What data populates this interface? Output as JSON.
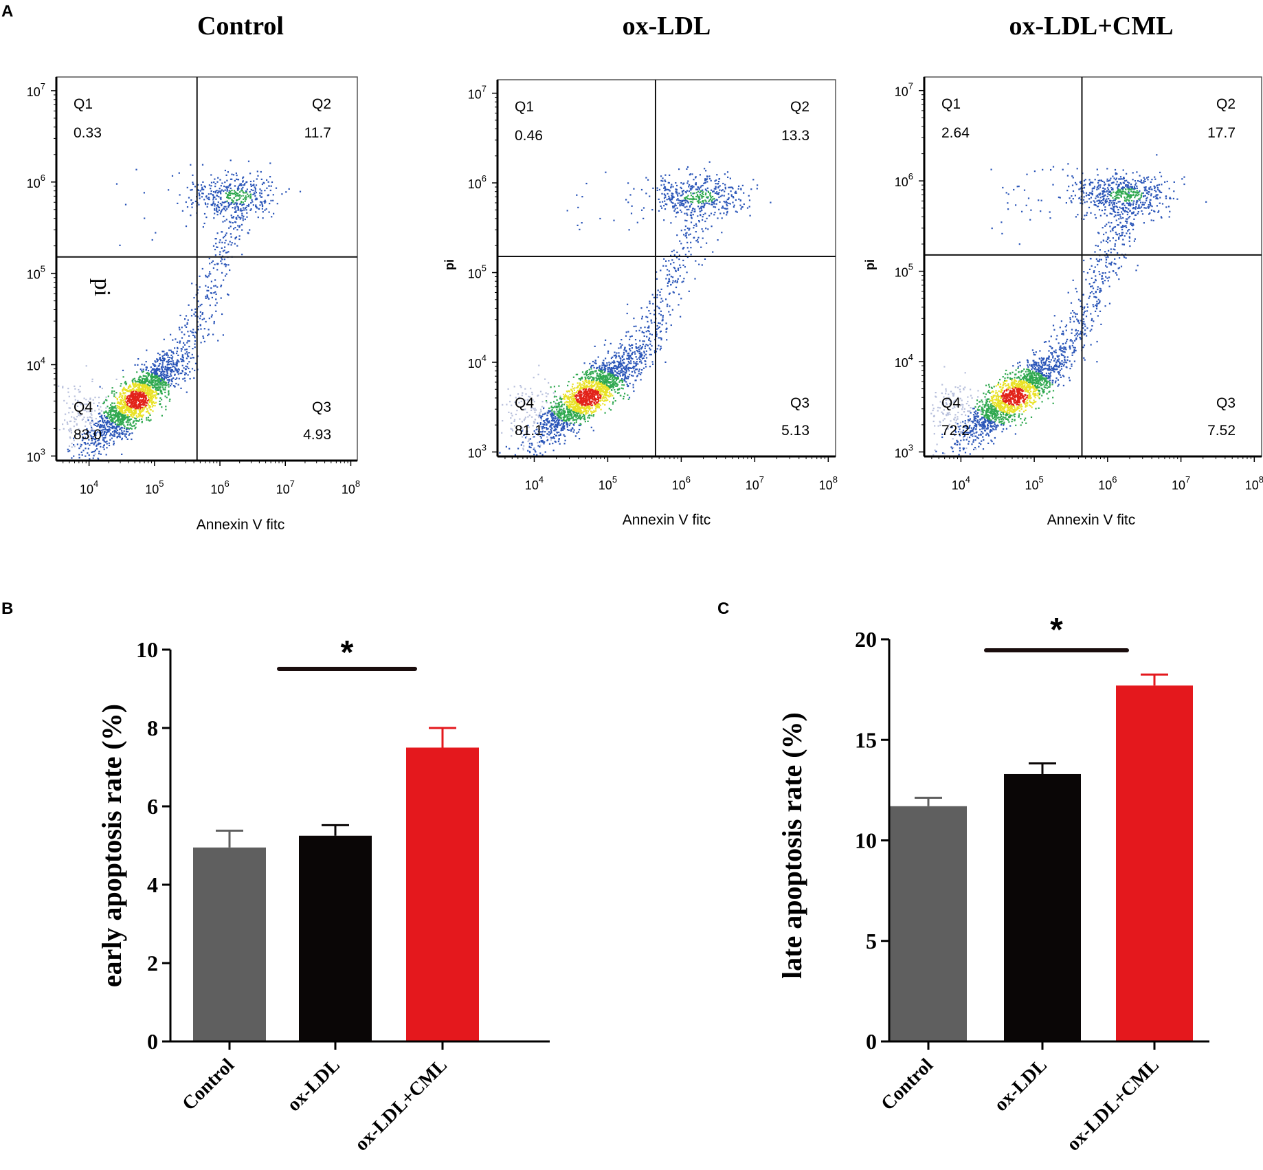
{
  "panel_labels": {
    "a": "A",
    "b": "B",
    "c": "C"
  },
  "colors": {
    "control_bar": "#5f5f5f",
    "oxldl_bar": "#0a0606",
    "oxldl_cml_bar": "#e4181d",
    "axis": "#000000",
    "density_low": "#2a55b8",
    "density_mid": "#2fa84f",
    "density_high": "#e9e226",
    "density_peak": "#e2231a",
    "density_sparse": "#b8c0dc"
  },
  "chart_data": [
    {
      "type": "scatter",
      "subtype": "flow-cytometry-density",
      "title": "Control",
      "xlabel": "Annexin V fitc",
      "ylabel": "pi",
      "x_ticks": [
        {
          "base": "10",
          "exp": "4"
        },
        {
          "base": "10",
          "exp": "5"
        },
        {
          "base": "10",
          "exp": "6"
        },
        {
          "base": "10",
          "exp": "7"
        },
        {
          "base": "10",
          "exp": "8"
        }
      ],
      "y_ticks": [
        {
          "base": "10",
          "exp": "3"
        },
        {
          "base": "10",
          "exp": "4"
        },
        {
          "base": "10",
          "exp": "5"
        },
        {
          "base": "10",
          "exp": "6"
        },
        {
          "base": "10",
          "exp": "7"
        }
      ],
      "xlim_log10": [
        3.5,
        8.1
      ],
      "ylim_log10": [
        2.95,
        7.15
      ],
      "gate_log10": {
        "x": 5.65,
        "y": 5.18
      },
      "quadrants": [
        {
          "name": "Q1",
          "value": "0.33"
        },
        {
          "name": "Q2",
          "value": "11.7"
        },
        {
          "name": "Q3",
          "value": "4.93"
        },
        {
          "name": "Q4",
          "value": "83.0"
        }
      ]
    },
    {
      "type": "scatter",
      "subtype": "flow-cytometry-density",
      "title": "ox-LDL",
      "xlabel": "Annexin V fitc",
      "ylabel": "pi",
      "x_ticks": [
        {
          "base": "10",
          "exp": "4"
        },
        {
          "base": "10",
          "exp": "5"
        },
        {
          "base": "10",
          "exp": "6"
        },
        {
          "base": "10",
          "exp": "7"
        },
        {
          "base": "10",
          "exp": "8"
        }
      ],
      "y_ticks": [
        {
          "base": "10",
          "exp": "3"
        },
        {
          "base": "10",
          "exp": "4"
        },
        {
          "base": "10",
          "exp": "5"
        },
        {
          "base": "10",
          "exp": "6"
        },
        {
          "base": "10",
          "exp": "7"
        }
      ],
      "xlim_log10": [
        3.5,
        8.1
      ],
      "ylim_log10": [
        2.95,
        7.15
      ],
      "gate_log10": {
        "x": 5.65,
        "y": 5.18
      },
      "quadrants": [
        {
          "name": "Q1",
          "value": "0.46"
        },
        {
          "name": "Q2",
          "value": "13.3"
        },
        {
          "name": "Q3",
          "value": "5.13"
        },
        {
          "name": "Q4",
          "value": "81.1"
        }
      ]
    },
    {
      "type": "scatter",
      "subtype": "flow-cytometry-density",
      "title": "ox-LDL+CML",
      "xlabel": "Annexin V fitc",
      "ylabel": "pi",
      "x_ticks": [
        {
          "base": "10",
          "exp": "4"
        },
        {
          "base": "10",
          "exp": "5"
        },
        {
          "base": "10",
          "exp": "6"
        },
        {
          "base": "10",
          "exp": "7"
        },
        {
          "base": "10",
          "exp": "8"
        }
      ],
      "y_ticks": [
        {
          "base": "10",
          "exp": "3"
        },
        {
          "base": "10",
          "exp": "4"
        },
        {
          "base": "10",
          "exp": "5"
        },
        {
          "base": "10",
          "exp": "6"
        },
        {
          "base": "10",
          "exp": "7"
        }
      ],
      "xlim_log10": [
        3.5,
        8.1
      ],
      "ylim_log10": [
        2.95,
        7.15
      ],
      "gate_log10": {
        "x": 5.65,
        "y": 5.18
      },
      "quadrants": [
        {
          "name": "Q1",
          "value": "2.64"
        },
        {
          "name": "Q2",
          "value": "17.7"
        },
        {
          "name": "Q3",
          "value": "7.52"
        },
        {
          "name": "Q4",
          "value": "72.2"
        }
      ]
    },
    {
      "type": "bar",
      "title": "",
      "categories": [
        "Control",
        "ox-LDL",
        "ox-LDL+CML"
      ],
      "values": [
        4.95,
        5.25,
        7.5
      ],
      "errors": [
        0.43,
        0.27,
        0.5
      ],
      "ylabel": "early apoptosis rate (%)",
      "xlabel": "",
      "ylim": [
        0,
        10
      ],
      "yticks": [
        0,
        2,
        4,
        6,
        8,
        10
      ],
      "ytick_labels": [
        "0",
        "2",
        "4",
        "6",
        "8",
        "10"
      ],
      "significance": {
        "from": 1,
        "to": 2,
        "label": "*",
        "level": 9.5
      }
    },
    {
      "type": "bar",
      "title": "",
      "categories": [
        "Control",
        "ox-LDL",
        "ox-LDL+CML"
      ],
      "values": [
        11.7,
        13.3,
        17.7
      ],
      "errors": [
        0.42,
        0.53,
        0.55
      ],
      "ylabel": "late apoptosis rate (%)",
      "xlabel": "",
      "ylim": [
        0,
        20
      ],
      "yticks": [
        0,
        5,
        10,
        15,
        20
      ],
      "ytick_labels": [
        "0",
        "5",
        "10",
        "15",
        "20"
      ],
      "significance": {
        "from": 1,
        "to": 2,
        "label": "*",
        "level": 19.5
      }
    }
  ]
}
